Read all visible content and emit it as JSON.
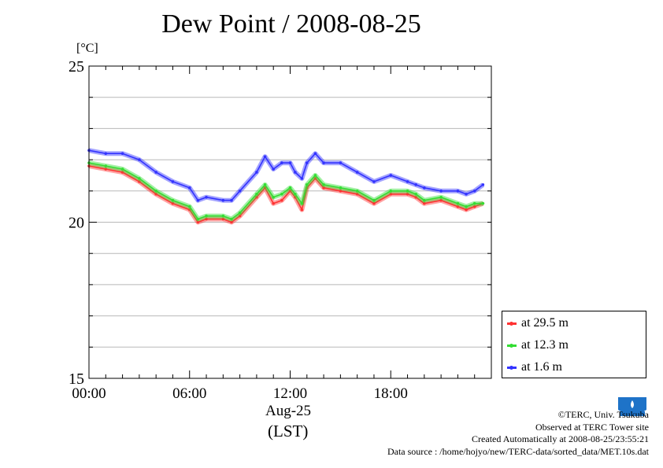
{
  "title": "Dew Point / 2008-08-25",
  "unit_label": "[°C]",
  "date_label": "Aug-25",
  "tz_label": "(LST)",
  "legend": [
    {
      "label": "at 29.5 m",
      "color": "#ff3333"
    },
    {
      "label": "at 12.3 m",
      "color": "#33dd33"
    },
    {
      "label": "at 1.6 m",
      "color": "#3333ff"
    }
  ],
  "credits": {
    "copyright": "©TERC, Univ. Tsukuba",
    "observed": "Observed at TERC Tower site",
    "created": "Created Automatically at 2008-08-25/23:55:21",
    "source": "Data source : /home/hojyo/new/TERC-data/sorted_data/MET.10s.dat"
  },
  "chart_data": {
    "type": "line",
    "title": "Dew Point / 2008-08-25",
    "xlabel": "Aug-25 (LST)",
    "ylabel": "[°C]",
    "xlim": [
      0,
      24
    ],
    "ylim": [
      15,
      25
    ],
    "x_ticks": [
      0,
      6,
      12,
      18
    ],
    "x_tick_labels": [
      "00:00",
      "06:00",
      "12:00",
      "18:00"
    ],
    "y_ticks": [
      15,
      20,
      25
    ],
    "y_tick_labels": [
      "15",
      "20",
      "25"
    ],
    "grid": true,
    "legend_position": "right",
    "series": [
      {
        "name": "at 29.5 m",
        "color": "#ff3333",
        "x": [
          0,
          1,
          2,
          3,
          4,
          5,
          6,
          6.5,
          7,
          8,
          8.5,
          9,
          10,
          10.5,
          11,
          11.5,
          12,
          12.3,
          12.7,
          13,
          13.5,
          14,
          15,
          16,
          17,
          18,
          19,
          19.5,
          20,
          21,
          22,
          22.5,
          23,
          23.5
        ],
        "values": [
          21.8,
          21.7,
          21.6,
          21.3,
          20.9,
          20.6,
          20.4,
          20.0,
          20.1,
          20.1,
          20.0,
          20.2,
          20.8,
          21.1,
          20.6,
          20.7,
          21.0,
          20.8,
          20.4,
          21.1,
          21.4,
          21.1,
          21.0,
          20.9,
          20.6,
          20.9,
          20.9,
          20.8,
          20.6,
          20.7,
          20.5,
          20.4,
          20.5,
          20.6
        ]
      },
      {
        "name": "at 12.3 m",
        "color": "#33dd33",
        "x": [
          0,
          1,
          2,
          3,
          4,
          5,
          6,
          6.5,
          7,
          8,
          8.5,
          9,
          10,
          10.5,
          11,
          11.5,
          12,
          12.3,
          12.7,
          13,
          13.5,
          14,
          15,
          16,
          17,
          18,
          19,
          19.5,
          20,
          21,
          22,
          22.5,
          23,
          23.5
        ],
        "values": [
          21.9,
          21.8,
          21.7,
          21.4,
          21.0,
          20.7,
          20.5,
          20.1,
          20.2,
          20.2,
          20.1,
          20.3,
          20.9,
          21.2,
          20.8,
          20.9,
          21.1,
          20.9,
          20.6,
          21.2,
          21.5,
          21.2,
          21.1,
          21.0,
          20.7,
          21.0,
          21.0,
          20.9,
          20.7,
          20.8,
          20.6,
          20.5,
          20.6,
          20.6
        ]
      },
      {
        "name": "at 1.6 m",
        "color": "#3333ff",
        "x": [
          0,
          1,
          2,
          3,
          4,
          5,
          6,
          6.5,
          7,
          8,
          8.5,
          9,
          10,
          10.5,
          11,
          11.5,
          12,
          12.3,
          12.7,
          13,
          13.5,
          14,
          15,
          16,
          17,
          18,
          19,
          19.5,
          20,
          21,
          22,
          22.5,
          23,
          23.5
        ],
        "values": [
          22.3,
          22.2,
          22.2,
          22.0,
          21.6,
          21.3,
          21.1,
          20.7,
          20.8,
          20.7,
          20.7,
          21.0,
          21.6,
          22.1,
          21.7,
          21.9,
          21.9,
          21.6,
          21.4,
          21.9,
          22.2,
          21.9,
          21.9,
          21.6,
          21.3,
          21.5,
          21.3,
          21.2,
          21.1,
          21.0,
          21.0,
          20.9,
          21.0,
          21.2
        ]
      }
    ]
  }
}
